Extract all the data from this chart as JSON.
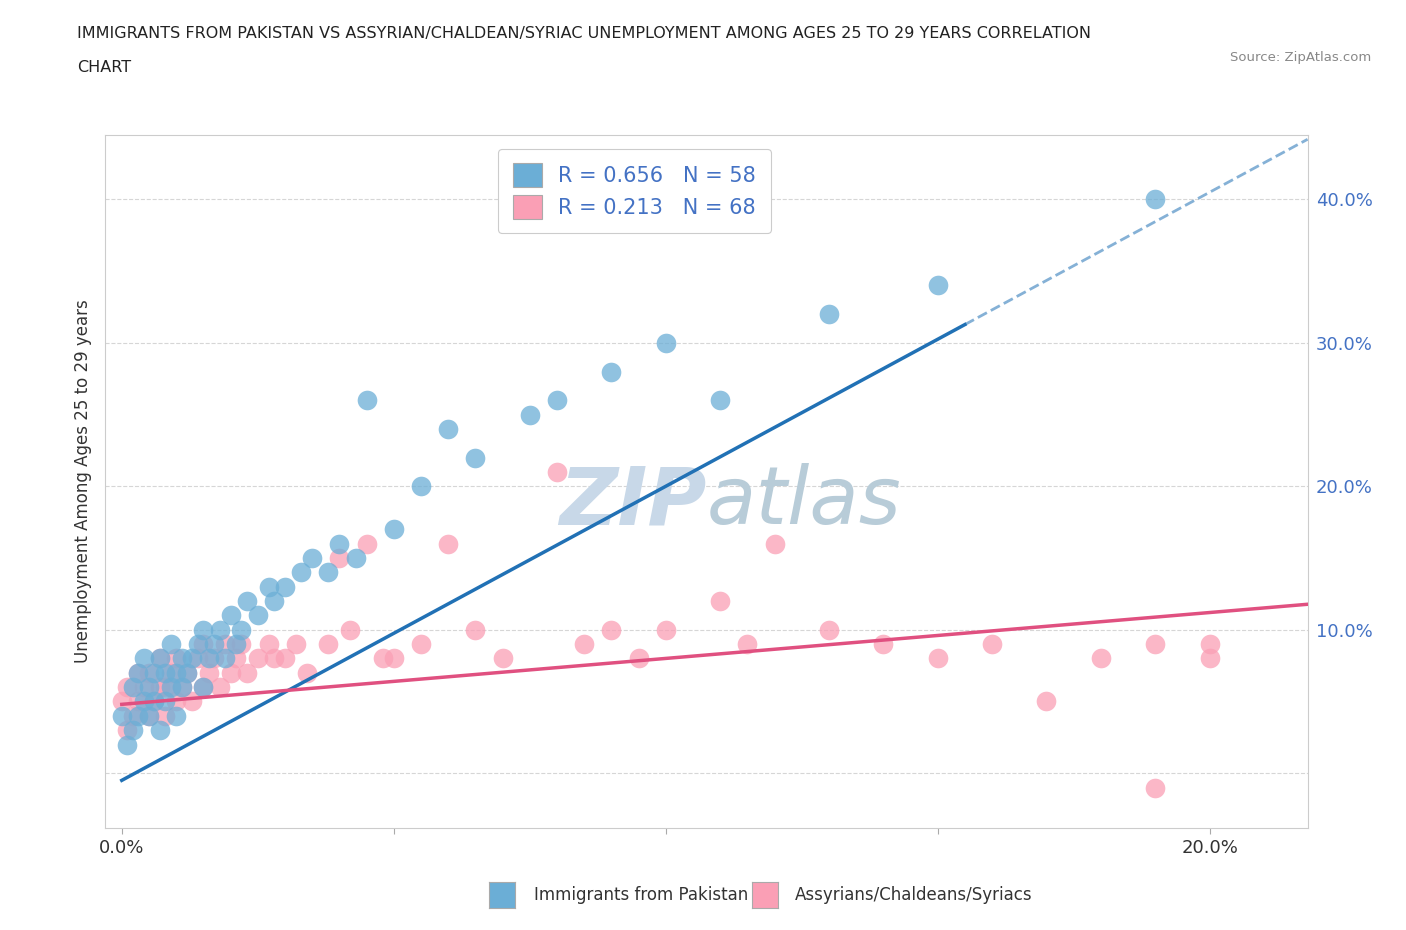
{
  "title_line1": "IMMIGRANTS FROM PAKISTAN VS ASSYRIAN/CHALDEAN/SYRIAC UNEMPLOYMENT AMONG AGES 25 TO 29 YEARS CORRELATION",
  "title_line2": "CHART",
  "source": "Source: ZipAtlas.com",
  "ylabel_label": "Unemployment Among Ages 25 to 29 years",
  "xmin": -0.003,
  "xmax": 0.218,
  "ymin": -0.038,
  "ymax": 0.445,
  "legend_blue_label": "Immigrants from Pakistan",
  "legend_pink_label": "Assyrians/Chaldeans/Syriacs",
  "R_blue": 0.656,
  "N_blue": 58,
  "R_pink": 0.213,
  "N_pink": 68,
  "blue_color": "#6baed6",
  "pink_color": "#fa9fb5",
  "trendline_blue_color": "#2171b5",
  "trendline_pink_color": "#e05080",
  "watermark_color": "#d0dce8",
  "background_color": "#ffffff",
  "blue_intercept": -0.005,
  "blue_slope": 2.05,
  "pink_intercept": 0.048,
  "pink_slope": 0.32
}
